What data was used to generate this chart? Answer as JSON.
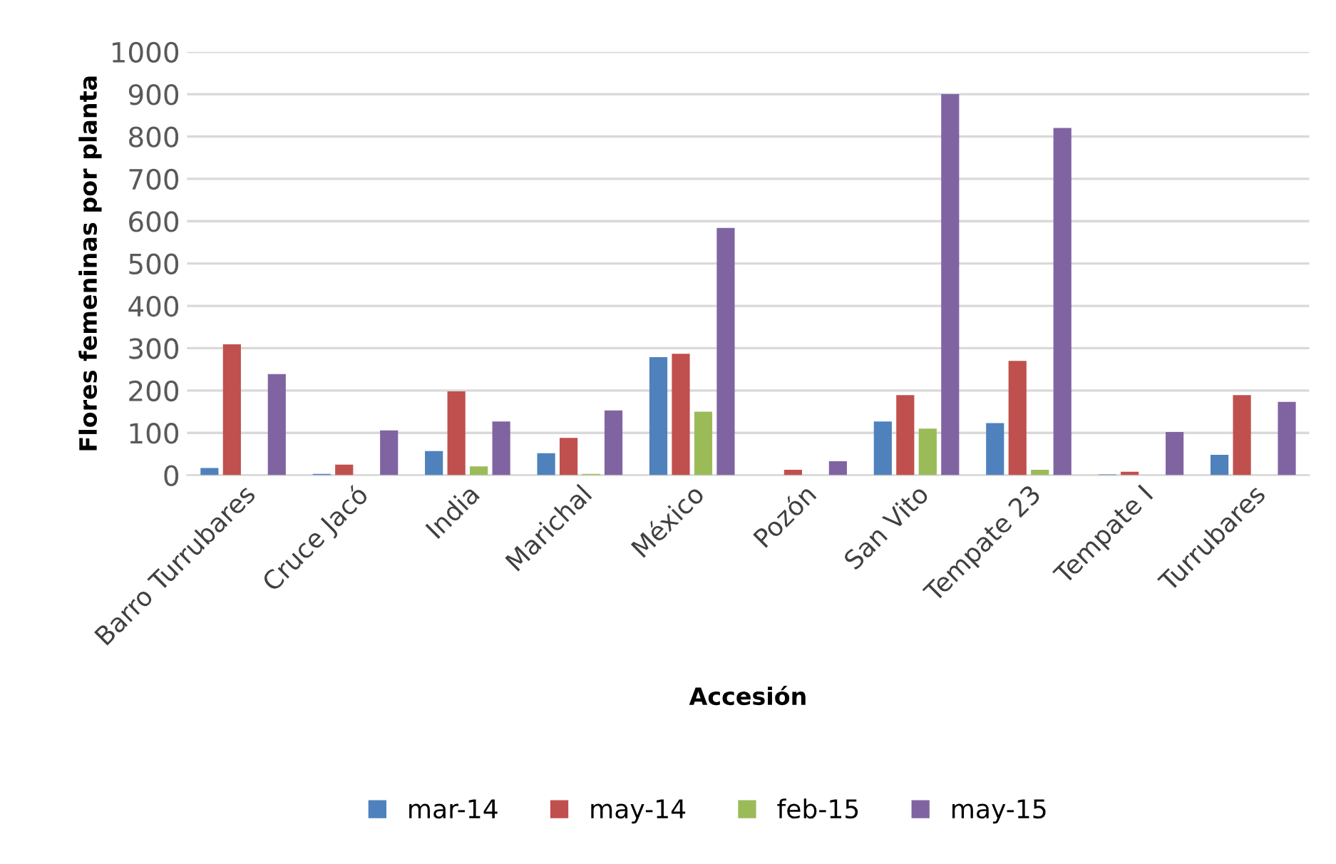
{
  "chart_data": {
    "type": "bar",
    "xlabel": "Accesión",
    "ylabel": "Flores femeninas por planta",
    "categories": [
      "Barro Turrubares",
      "Cruce Jacó",
      "India",
      "Marichal",
      "México",
      "Pozón",
      "San Vito",
      "Tempate 23",
      "Tempate I",
      "Turrubares"
    ],
    "series": [
      {
        "name": "mar-14",
        "color": "#4f81bd",
        "values": [
          17,
          3,
          57,
          52,
          279,
          0,
          127,
          123,
          2,
          48
        ]
      },
      {
        "name": "may-14",
        "color": "#c0504d",
        "values": [
          309,
          25,
          198,
          88,
          287,
          13,
          189,
          270,
          8,
          189
        ]
      },
      {
        "name": "feb-15",
        "color": "#9bbb59",
        "values": [
          0,
          0,
          21,
          3,
          150,
          0,
          110,
          13,
          0,
          0
        ]
      },
      {
        "name": "may-15",
        "color": "#8064a2",
        "values": [
          239,
          106,
          127,
          153,
          584,
          33,
          900,
          820,
          102,
          173
        ]
      }
    ],
    "ylim": [
      0,
      1000
    ],
    "yticks": [
      0,
      100,
      200,
      300,
      400,
      500,
      600,
      700,
      800,
      900,
      1000
    ],
    "grid": "y",
    "legend": "bottom"
  }
}
